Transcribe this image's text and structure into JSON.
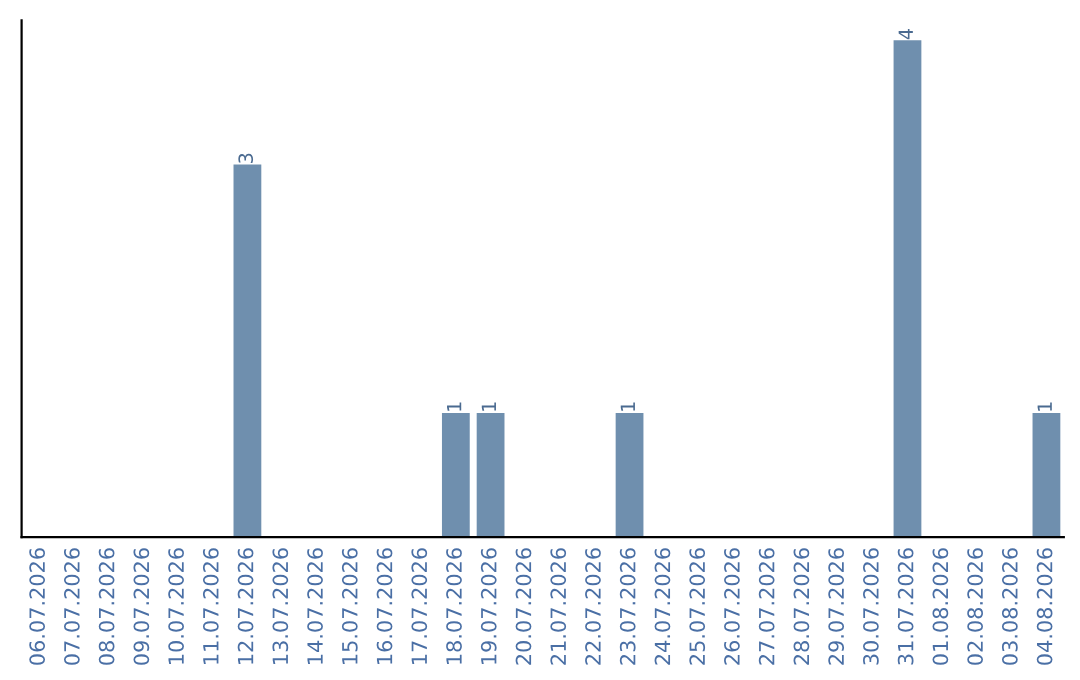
{
  "chart_data": {
    "type": "bar",
    "categories": [
      "06.07.2026",
      "07.07.2026",
      "08.07.2026",
      "09.07.2026",
      "10.07.2026",
      "11.07.2026",
      "12.07.2026",
      "13.07.2026",
      "14.07.2026",
      "15.07.2026",
      "16.07.2026",
      "17.07.2026",
      "18.07.2026",
      "19.07.2026",
      "20.07.2026",
      "21.07.2026",
      "22.07.2026",
      "23.07.2026",
      "24.07.2026",
      "25.07.2026",
      "26.07.2026",
      "27.07.2026",
      "28.07.2026",
      "29.07.2026",
      "30.07.2026",
      "31.07.2026",
      "01.08.2026",
      "02.08.2026",
      "03.08.2026",
      "04.08.2026"
    ],
    "values": [
      0,
      0,
      0,
      0,
      0,
      0,
      3,
      0,
      0,
      0,
      0,
      0,
      1,
      1,
      0,
      0,
      0,
      1,
      0,
      0,
      0,
      0,
      0,
      0,
      0,
      4,
      0,
      0,
      0,
      1
    ],
    "value_labels": [
      null,
      null,
      null,
      null,
      null,
      null,
      "3",
      null,
      null,
      null,
      null,
      null,
      "1",
      "1",
      null,
      null,
      null,
      "1",
      null,
      null,
      null,
      null,
      null,
      null,
      null,
      "4",
      null,
      null,
      null,
      "1"
    ],
    "color": "#6f8fae",
    "tick_labels": "x",
    "grid": false,
    "legend": false
  }
}
